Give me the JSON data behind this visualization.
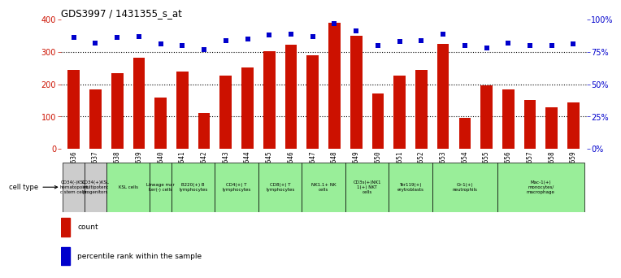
{
  "title": "GDS3997 / 1431355_s_at",
  "gsm_labels": [
    "GSM686636",
    "GSM686637",
    "GSM686638",
    "GSM686639",
    "GSM686640",
    "GSM686641",
    "GSM686642",
    "GSM686643",
    "GSM686644",
    "GSM686645",
    "GSM686646",
    "GSM686647",
    "GSM686648",
    "GSM686649",
    "GSM686650",
    "GSM686651",
    "GSM686652",
    "GSM686653",
    "GSM686654",
    "GSM686655",
    "GSM686656",
    "GSM686657",
    "GSM686658",
    "GSM686659"
  ],
  "bar_values": [
    245,
    185,
    235,
    282,
    160,
    240,
    112,
    228,
    252,
    302,
    322,
    290,
    390,
    350,
    172,
    228,
    245,
    325,
    96,
    197,
    183,
    152,
    130,
    143
  ],
  "percentile_values": [
    86,
    82,
    86,
    87,
    81,
    80,
    77,
    84,
    85,
    88,
    89,
    87,
    97,
    91,
    80,
    83,
    84,
    89,
    80,
    78,
    82,
    80,
    80,
    81
  ],
  "bar_color": "#cc1100",
  "dot_color": "#0000cc",
  "background_color": "#ffffff",
  "ylim_left": [
    0,
    400
  ],
  "ylim_right": [
    0,
    100
  ],
  "yticks_left": [
    0,
    100,
    200,
    300,
    400
  ],
  "yticks_right": [
    0,
    25,
    50,
    75,
    100
  ],
  "yticklabels_right": [
    "0%",
    "25%",
    "50%",
    "75%",
    "100%"
  ],
  "grid_lines": [
    100,
    200,
    300
  ],
  "cell_type_groups": [
    {
      "label": "CD34(-)KSL\nhematopoiet\nc stem cells",
      "start": 0,
      "end": 1,
      "color": "#cccccc"
    },
    {
      "label": "CD34(+)KSL\nmultipotent\nprogenitors",
      "start": 1,
      "end": 2,
      "color": "#cccccc"
    },
    {
      "label": "KSL cells",
      "start": 2,
      "end": 4,
      "color": "#99ee99"
    },
    {
      "label": "Lineage mar\nker(-) cells",
      "start": 4,
      "end": 5,
      "color": "#99ee99"
    },
    {
      "label": "B220(+) B\nlymphocytes",
      "start": 5,
      "end": 7,
      "color": "#99ee99"
    },
    {
      "label": "CD4(+) T\nlymphocytes",
      "start": 7,
      "end": 9,
      "color": "#99ee99"
    },
    {
      "label": "CD8(+) T\nlymphocytes",
      "start": 9,
      "end": 11,
      "color": "#99ee99"
    },
    {
      "label": "NK1.1+ NK\ncells",
      "start": 11,
      "end": 13,
      "color": "#99ee99"
    },
    {
      "label": "CD3s(+)NK1\n1(+) NKT\ncells",
      "start": 13,
      "end": 15,
      "color": "#99ee99"
    },
    {
      "label": "Ter119(+)\nerytroblasts",
      "start": 15,
      "end": 17,
      "color": "#99ee99"
    },
    {
      "label": "Gr-1(+)\nneutrophils",
      "start": 17,
      "end": 20,
      "color": "#99ee99"
    },
    {
      "label": "Mac-1(+)\nmonocytes/\nmacrophage",
      "start": 20,
      "end": 24,
      "color": "#99ee99"
    }
  ],
  "cell_type_label": "cell type",
  "legend_count_label": "count",
  "legend_pct_label": "percentile rank within the sample"
}
